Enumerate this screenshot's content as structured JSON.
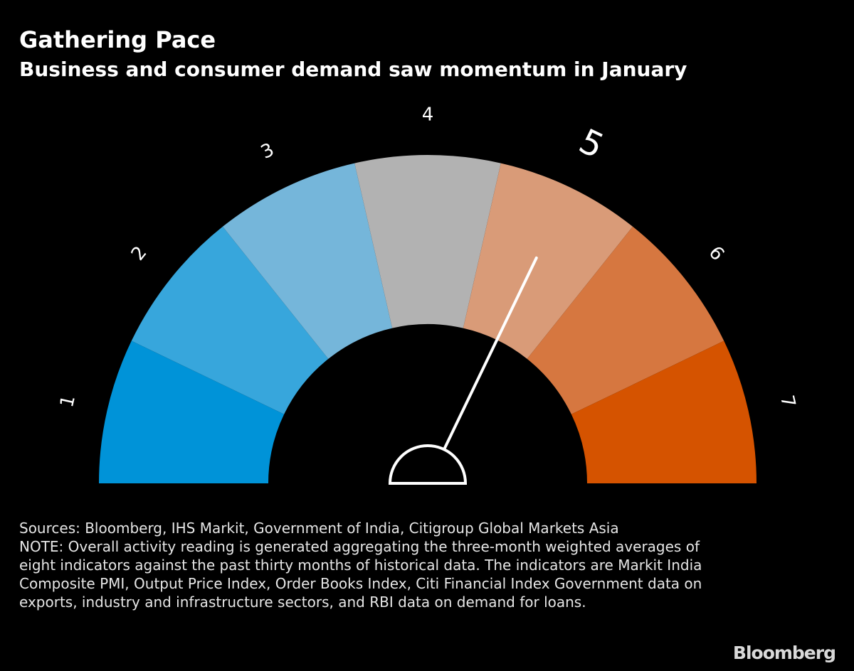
{
  "title": "Gathering Pace",
  "subtitle": "Business and consumer demand saw momentum in January",
  "chart_data": {
    "type": "gauge",
    "categories": [
      "1",
      "2",
      "3",
      "4",
      "5",
      "6",
      "7"
    ],
    "segment_colors": [
      "#0093d8",
      "#37a6dc",
      "#75b6da",
      "#b2b2b2",
      "#d99b78",
      "#d67740",
      "#d55300"
    ],
    "needle_value": 5,
    "highlighted_category": "5",
    "range": [
      1,
      7
    ]
  },
  "sources": "Sources: Bloomberg, IHS Markit, Government of India, Citigroup Global Markets Asia",
  "note": "NOTE: Overall activity reading is generated aggregating the three-month weighted averages of eight indicators against the past thirty months of historical data. The indicators are Markit India Composite PMI, Output Price Index, Order Books Index, Citi Financial Index Government data on exports, industry and infrastructure sectors, and RBI data on demand for loans.",
  "brand": "Bloomberg"
}
